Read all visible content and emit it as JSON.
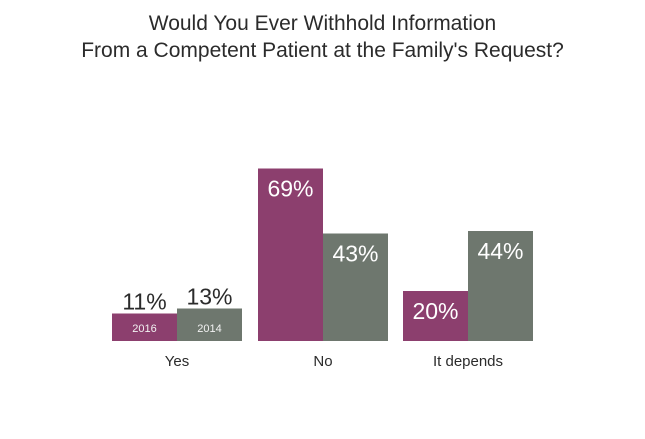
{
  "chart_data": {
    "type": "bar",
    "title_lines": [
      "Would You Ever Withhold Information",
      "From a Competent Patient at the Family's Request?"
    ],
    "categories": [
      "Yes",
      "No",
      "It depends"
    ],
    "series": [
      {
        "name": "2016",
        "values": [
          11,
          69,
          20
        ],
        "labels": [
          "11%",
          "69%",
          "20%"
        ]
      },
      {
        "name": "2014",
        "values": [
          13,
          43,
          44
        ],
        "labels": [
          "13%",
          "43%",
          "44%"
        ]
      }
    ],
    "colors": {
      "2016": "#8c3f6e",
      "2014": "#6e776e"
    },
    "ylim": [
      0,
      70
    ],
    "grid": false,
    "legend": "series names printed inside the Yes bars"
  }
}
